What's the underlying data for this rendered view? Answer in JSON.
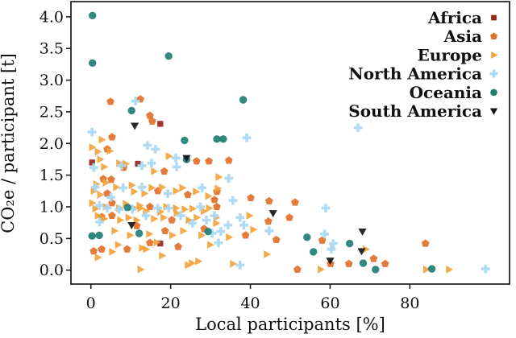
{
  "chart_data": {
    "type": "scatter",
    "title": "",
    "xlabel": "Local participants [%]",
    "ylabel": "CO₂e / participant [t]",
    "xlim": [
      -5,
      105
    ],
    "ylim": [
      -0.22,
      4.24
    ],
    "xticks": [
      "0",
      "20",
      "40",
      "60",
      "80"
    ],
    "yticks": [
      "0.0",
      "0.5",
      "1.0",
      "1.5",
      "2.0",
      "2.5",
      "3.0",
      "3.5",
      "4.0"
    ],
    "grid": false,
    "legend_position": "upper right",
    "axis_color": "#1a1a1a",
    "series": [
      {
        "name": "Africa",
        "marker": "square",
        "color": "#9b241e",
        "points": [
          [
            17.4,
            2.31
          ],
          [
            0.3,
            1.7
          ],
          [
            11.8,
            1.68
          ],
          [
            17.4,
            0.42
          ]
        ]
      },
      {
        "name": "Asia",
        "marker": "pentagon",
        "color": "#e2702a",
        "points": [
          [
            4.9,
            2.66
          ],
          [
            12.4,
            2.7
          ],
          [
            14.8,
            2.44
          ],
          [
            15.4,
            2.35
          ],
          [
            5.3,
            2.1
          ],
          [
            4.1,
            1.91
          ],
          [
            8.2,
            1.62
          ],
          [
            18.4,
            1.56
          ],
          [
            26.5,
            1.72
          ],
          [
            29.6,
            1.72
          ],
          [
            34.6,
            1.73
          ],
          [
            3.1,
            1.44
          ],
          [
            5.1,
            1.43
          ],
          [
            4.1,
            1.21
          ],
          [
            16.8,
            1.25
          ],
          [
            24.3,
            1.19
          ],
          [
            31.6,
            1.24
          ],
          [
            31.0,
            1.11
          ],
          [
            40.1,
            1.14
          ],
          [
            44.7,
            1.09
          ],
          [
            51.2,
            1.07
          ],
          [
            14.8,
            1.0
          ],
          [
            31.6,
            1.0
          ],
          [
            5.3,
            1.06
          ],
          [
            2.7,
            0.84
          ],
          [
            5.3,
            0.86
          ],
          [
            20.3,
            0.79
          ],
          [
            44.5,
            0.77
          ],
          [
            49.8,
            0.83
          ],
          [
            28.4,
            0.65
          ],
          [
            11.5,
            0.7
          ],
          [
            18.6,
            0.62
          ],
          [
            58.0,
            0.47
          ],
          [
            14.8,
            0.43
          ],
          [
            0.7,
            0.3
          ],
          [
            2.7,
            0.33
          ],
          [
            9.1,
            0.33
          ],
          [
            21.9,
            0.37
          ],
          [
            38.8,
            0.55
          ],
          [
            46.5,
            0.48
          ],
          [
            51.8,
            0.01
          ],
          [
            60.1,
            0.1
          ],
          [
            64.7,
            0.1
          ],
          [
            70.9,
            0.18
          ],
          [
            73.8,
            0.1
          ],
          [
            83.9,
            0.42
          ]
        ]
      },
      {
        "name": "Europe",
        "marker": "triangle-right",
        "color": "#f3a33c",
        "points": [
          [
            2.7,
            2.06
          ],
          [
            0.3,
            1.94
          ],
          [
            1.7,
            1.87
          ],
          [
            4.7,
            1.88
          ],
          [
            19.5,
            1.8
          ],
          [
            2.3,
            1.75
          ],
          [
            3.3,
            1.63
          ],
          [
            7.1,
            1.69
          ],
          [
            8.7,
            1.68
          ],
          [
            15.8,
            1.56
          ],
          [
            32.0,
            1.47
          ],
          [
            31.8,
            1.29
          ],
          [
            1.3,
            1.36
          ],
          [
            3.7,
            1.38
          ],
          [
            6.3,
            1.31
          ],
          [
            10.2,
            1.34
          ],
          [
            10.8,
            1.24
          ],
          [
            13.4,
            1.21
          ],
          [
            15.2,
            1.3
          ],
          [
            17.8,
            1.31
          ],
          [
            21.3,
            1.25
          ],
          [
            22.9,
            1.3
          ],
          [
            26.3,
            1.24
          ],
          [
            29.4,
            1.17
          ],
          [
            2.3,
            1.19
          ],
          [
            0.7,
            1.25
          ],
          [
            0.3,
            1.06
          ],
          [
            3.7,
            1.0
          ],
          [
            7.1,
            0.98
          ],
          [
            8.7,
            1.05
          ],
          [
            12.2,
            1.02
          ],
          [
            13.8,
            0.93
          ],
          [
            17.4,
            0.92
          ],
          [
            21.5,
            0.9
          ],
          [
            23.5,
            0.96
          ],
          [
            28.3,
            0.93
          ],
          [
            1.1,
            0.97
          ],
          [
            10.8,
            0.98
          ],
          [
            12.4,
            0.98
          ],
          [
            18.9,
            1.0
          ],
          [
            21.3,
            0.98
          ],
          [
            25.5,
            0.97
          ],
          [
            29.6,
            0.98
          ],
          [
            39.7,
            0.86
          ],
          [
            1.7,
            0.86
          ],
          [
            3.3,
            0.81
          ],
          [
            7.3,
            0.79
          ],
          [
            9.4,
            0.83
          ],
          [
            11.4,
            0.79
          ],
          [
            15.8,
            0.81
          ],
          [
            18.2,
            0.83
          ],
          [
            24.5,
            0.79
          ],
          [
            26.5,
            0.83
          ],
          [
            31.4,
            0.83
          ],
          [
            31.4,
            0.74
          ],
          [
            34.6,
            0.52
          ],
          [
            40.7,
            0.64
          ],
          [
            5.9,
            0.62
          ],
          [
            9.8,
            0.55
          ],
          [
            14.6,
            0.57
          ],
          [
            20.4,
            0.55
          ],
          [
            23.1,
            0.62
          ],
          [
            27.7,
            0.55
          ],
          [
            6.8,
            0.4
          ],
          [
            16.5,
            0.44
          ],
          [
            29.9,
            0.4
          ],
          [
            44.1,
            0.25
          ],
          [
            1.7,
            0.2
          ],
          [
            5.3,
            0.29
          ],
          [
            12.8,
            0.35
          ],
          [
            13.8,
            0.33
          ],
          [
            17.8,
            0.23
          ],
          [
            24.3,
            0.08
          ],
          [
            25.3,
            0.11
          ],
          [
            26.9,
            0.14
          ],
          [
            12.4,
            0.01
          ],
          [
            35.6,
            0.1
          ],
          [
            57.6,
            0.01
          ],
          [
            68.9,
            0.33
          ],
          [
            84.1,
            0.01
          ],
          [
            89.8,
            0.01
          ]
        ]
      },
      {
        "name": "North America",
        "marker": "plus",
        "color": "#a7d8f2",
        "points": [
          [
            0.3,
            2.18
          ],
          [
            11.2,
            2.67
          ],
          [
            39.1,
            2.09
          ],
          [
            67.0,
            2.25
          ],
          [
            14.2,
            1.97
          ],
          [
            16.2,
            1.91
          ],
          [
            21.3,
            1.77
          ],
          [
            0.7,
            1.62
          ],
          [
            7.7,
            1.65
          ],
          [
            12.8,
            1.65
          ],
          [
            15.2,
            1.69
          ],
          [
            21.5,
            1.63
          ],
          [
            1.1,
            1.31
          ],
          [
            8.1,
            1.3
          ],
          [
            12.8,
            1.31
          ],
          [
            19.3,
            1.21
          ],
          [
            27.9,
            1.3
          ],
          [
            34.6,
            1.45
          ],
          [
            35.6,
            1.1
          ],
          [
            5.0,
            1.15
          ],
          [
            2.1,
            1.02
          ],
          [
            10.4,
            0.96
          ],
          [
            19.5,
            0.98
          ],
          [
            27.5,
            1.0
          ],
          [
            31.0,
            0.86
          ],
          [
            4.1,
            0.98
          ],
          [
            7.1,
            0.96
          ],
          [
            16.8,
            0.98
          ],
          [
            58.9,
            0.98
          ],
          [
            13.8,
            0.86
          ],
          [
            22.5,
            0.86
          ],
          [
            29.0,
            0.79
          ],
          [
            37.4,
            0.83
          ],
          [
            25.5,
            0.74
          ],
          [
            2.2,
            0.76
          ],
          [
            34.4,
            0.71
          ],
          [
            38.4,
            0.71
          ],
          [
            32.6,
            0.61
          ],
          [
            44.7,
            0.62
          ],
          [
            58.6,
            0.57
          ],
          [
            30.4,
            0.58
          ],
          [
            60.8,
            0.42
          ],
          [
            60.3,
            0.33
          ],
          [
            32.0,
            0.43
          ],
          [
            37.4,
            0.08
          ],
          [
            99.0,
            0.02
          ]
        ]
      },
      {
        "name": "Oceania",
        "marker": "circle",
        "color": "#1f7e73",
        "points": [
          [
            0.4,
            4.02
          ],
          [
            0.4,
            3.27
          ],
          [
            19.5,
            3.38
          ],
          [
            38.2,
            2.69
          ],
          [
            10.2,
            2.52
          ],
          [
            23.5,
            2.05
          ],
          [
            31.6,
            2.07
          ],
          [
            33.2,
            2.07
          ],
          [
            24.0,
            1.75
          ],
          [
            9.2,
            0.99
          ],
          [
            0.3,
            0.54
          ],
          [
            2.1,
            0.55
          ],
          [
            12.1,
            0.58
          ],
          [
            29.4,
            0.61
          ],
          [
            54.2,
            0.52
          ],
          [
            55.8,
            0.29
          ],
          [
            64.9,
            0.42
          ],
          [
            68.3,
            0.11
          ],
          [
            71.4,
            0.01
          ],
          [
            85.5,
            0.02
          ]
        ]
      },
      {
        "name": "South America",
        "marker": "triangle-down",
        "color": "#16161a",
        "points": [
          [
            11.0,
            2.28
          ],
          [
            24.0,
            1.77
          ],
          [
            10.2,
            0.71
          ],
          [
            45.7,
            0.9
          ],
          [
            60.0,
            0.15
          ],
          [
            67.9,
            0.3
          ],
          [
            68.1,
            0.61
          ]
        ]
      }
    ]
  }
}
